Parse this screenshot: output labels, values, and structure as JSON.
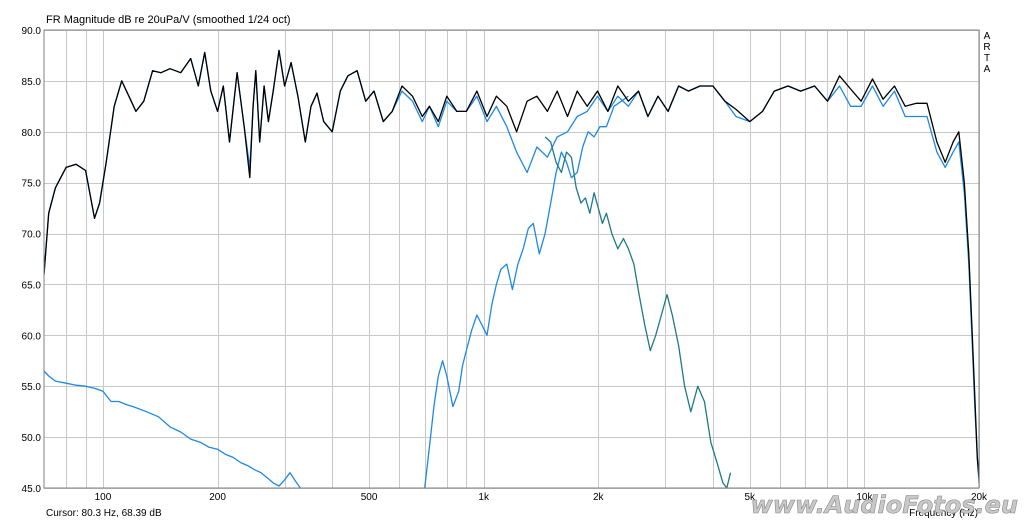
{
  "chart_data": {
    "type": "line",
    "title": "FR Magnitude dB re 20uPa/V (smoothed 1/24 oct)",
    "xlabel": "Frequency (Hz)",
    "ylabel": "",
    "x_scale": "log",
    "xlim": [
      70,
      20000
    ],
    "ylim": [
      45,
      90
    ],
    "grid": true,
    "legend": "none",
    "y_ticks": [
      {
        "value": 90,
        "label": "90.0"
      },
      {
        "value": 85,
        "label": "85.0"
      },
      {
        "value": 80,
        "label": "80.0"
      },
      {
        "value": 75,
        "label": "75.0"
      },
      {
        "value": 70,
        "label": "70.0"
      },
      {
        "value": 65,
        "label": "65.0"
      },
      {
        "value": 60,
        "label": "60.0"
      },
      {
        "value": 55,
        "label": "55.0"
      },
      {
        "value": 50,
        "label": "50.0"
      },
      {
        "value": 45,
        "label": "45.0"
      }
    ],
    "x_ticks": [
      {
        "value": 100,
        "label": "100"
      },
      {
        "value": 200,
        "label": "200"
      },
      {
        "value": 500,
        "label": "500"
      },
      {
        "value": 1000,
        "label": "1k"
      },
      {
        "value": 2000,
        "label": "2k"
      },
      {
        "value": 5000,
        "label": "5k"
      },
      {
        "value": 10000,
        "label": "10k"
      },
      {
        "value": 20000,
        "label": "20k"
      }
    ],
    "series": [
      {
        "color": "#000000",
        "x": [
          70,
          72,
          75,
          80,
          85,
          90,
          95,
          98,
          102,
          107,
          112,
          118,
          122,
          128,
          135,
          142,
          150,
          160,
          170,
          178,
          185,
          192,
          200,
          207,
          215,
          225,
          235,
          243,
          248,
          252,
          258,
          265,
          272,
          280,
          290,
          300,
          312,
          325,
          340,
          352,
          365,
          380,
          400,
          420,
          440,
          465,
          490,
          515,
          545,
          575,
          610,
          650,
          690,
          720,
          760,
          800,
          850,
          900,
          960,
          1020,
          1080,
          1150,
          1220,
          1300,
          1380,
          1470,
          1560,
          1660,
          1760,
          1870,
          1990,
          2120,
          2250,
          2400,
          2550,
          2700,
          2870,
          3050,
          3250,
          3450,
          3700,
          4000,
          4300,
          4600,
          5000,
          5400,
          5800,
          6300,
          6800,
          7400,
          8000,
          8600,
          9200,
          9800,
          10500,
          11200,
          12000,
          12800,
          13700,
          14600,
          15500,
          16300,
          17100,
          17700,
          18300,
          18800,
          19200,
          19500,
          19800,
          20000
        ],
        "values": [
          66,
          72,
          74.5,
          76.5,
          76.8,
          76.2,
          71.5,
          73,
          77,
          82.5,
          85,
          83.2,
          82,
          83,
          86,
          85.8,
          86.2,
          85.8,
          87.2,
          84.5,
          87.8,
          84,
          82,
          84.5,
          79,
          85.8,
          80.5,
          75.5,
          82.5,
          86,
          79,
          84.5,
          81,
          84,
          88,
          84.5,
          86.8,
          83.5,
          79,
          82.5,
          83.8,
          81,
          80,
          84,
          85.5,
          86,
          83,
          84,
          81,
          82,
          84.5,
          83.5,
          81.5,
          82.5,
          81,
          83.5,
          82,
          82,
          84,
          81.5,
          83.5,
          82.5,
          80,
          83,
          83.5,
          82,
          84,
          81.5,
          84,
          82.5,
          84,
          82,
          84.5,
          83,
          84,
          81.5,
          83.5,
          82,
          84.5,
          84,
          84.5,
          84.5,
          83,
          82.2,
          81,
          82,
          84,
          84.5,
          84,
          84.5,
          83,
          85.5,
          84.2,
          83,
          85.2,
          83.2,
          84.5,
          82.5,
          82.8,
          82.8,
          79,
          77,
          79,
          80,
          75,
          68,
          60,
          54,
          48,
          46
        ]
      },
      {
        "color": "#1e88e5",
        "x": [
          70,
          72,
          75,
          80,
          85,
          90,
          95,
          98,
          102,
          107,
          112,
          118,
          122,
          128,
          135,
          142,
          150,
          160,
          170,
          178,
          185,
          192,
          200,
          207,
          215,
          225,
          235,
          243,
          248,
          252,
          258,
          265,
          272,
          280,
          290,
          300,
          312,
          325,
          340,
          352,
          365,
          380,
          400,
          420,
          440,
          465,
          490,
          515,
          545,
          575,
          610,
          650,
          690,
          720,
          760,
          800,
          850,
          900,
          960,
          1020,
          1080,
          1150,
          1220,
          1300,
          1380,
          1470,
          1560,
          1660,
          1760,
          1870,
          1990,
          2120,
          2250,
          2400,
          2550,
          2700,
          2870,
          3050,
          3250,
          3450,
          3700,
          4000,
          4300,
          4600,
          5000,
          5400,
          5800,
          6300,
          6800,
          7400,
          8000,
          8600,
          9200,
          9800,
          10500,
          11200,
          12000,
          12800,
          13700,
          14600,
          15500,
          16300,
          17100,
          17700,
          18300,
          18800,
          19200,
          19500,
          19800,
          20000
        ],
        "values": [
          66,
          72,
          74.5,
          76.5,
          76.8,
          76.2,
          71.5,
          73,
          77,
          82.5,
          85,
          83.2,
          82,
          83,
          86,
          85.8,
          86.2,
          85.8,
          87.2,
          84.5,
          87.8,
          84,
          82,
          84.5,
          79,
          85.8,
          80.5,
          76.5,
          82.5,
          86,
          79,
          84.5,
          81,
          84,
          88,
          84.5,
          86.8,
          83.5,
          79,
          82.5,
          83.8,
          81,
          80,
          84,
          85.5,
          86,
          83,
          84,
          81,
          82,
          84,
          83,
          81,
          82.5,
          80.5,
          83,
          82,
          82,
          83.5,
          81,
          82.5,
          80.5,
          78,
          76,
          78.5,
          77.5,
          79.5,
          80,
          81.5,
          82,
          83.5,
          82,
          83.5,
          82.5,
          84,
          81.5,
          83.5,
          82,
          84.5,
          84,
          84.5,
          84.5,
          83,
          81.5,
          81,
          82,
          84,
          84.5,
          84,
          84.5,
          83,
          84.5,
          82.5,
          82.5,
          84.5,
          82.5,
          84,
          81.5,
          81.5,
          81.5,
          78,
          76.5,
          78,
          79,
          74,
          67,
          59,
          53,
          48,
          45.5
        ]
      },
      {
        "color": "#1e88e5",
        "x": [
          70,
          72,
          75,
          80,
          85,
          90,
          95,
          100,
          105,
          110,
          115,
          120,
          130,
          140,
          150,
          160,
          170,
          180,
          190,
          200,
          210,
          220,
          230,
          240,
          250,
          260,
          270,
          280,
          290,
          300,
          310,
          320,
          330
        ],
        "values": [
          56.5,
          56,
          55.5,
          55.3,
          55.1,
          55,
          54.8,
          54.5,
          53.5,
          53.5,
          53.2,
          53,
          52.5,
          52,
          51,
          50.5,
          49.8,
          49.5,
          49,
          48.8,
          48.3,
          48,
          47.5,
          47.2,
          46.8,
          46.5,
          46,
          45.5,
          45.2,
          45.8,
          46.5,
          45.7,
          45
        ]
      },
      {
        "color": "#1e88e5",
        "x": [
          700,
          720,
          740,
          760,
          780,
          800,
          830,
          860,
          880,
          900,
          930,
          960,
          990,
          1020,
          1050,
          1080,
          1110,
          1150,
          1190,
          1230,
          1270,
          1310,
          1350,
          1400,
          1450,
          1500,
          1550,
          1600,
          1650,
          1700,
          1760,
          1820,
          1880,
          1950,
          2020,
          2100,
          2200,
          2300,
          2400
        ],
        "values": [
          45,
          49,
          53,
          56,
          57.5,
          56,
          53,
          54.5,
          57,
          58.5,
          60.5,
          62,
          61,
          60,
          63,
          65,
          66.5,
          67,
          64.5,
          67,
          68.5,
          70.5,
          71,
          68,
          70,
          73,
          76,
          78,
          77,
          75.5,
          76,
          78.5,
          80,
          79.5,
          80.5,
          80.5,
          82.5,
          83,
          83.5
        ]
      },
      {
        "color": "#1e7a86",
        "x": [
          1450,
          1500,
          1550,
          1600,
          1650,
          1700,
          1750,
          1800,
          1850,
          1900,
          1950,
          2000,
          2050,
          2100,
          2170,
          2250,
          2330,
          2400,
          2480,
          2560,
          2650,
          2740,
          2830,
          2930,
          3030,
          3130,
          3250,
          3370,
          3500,
          3650,
          3800,
          3950,
          4100,
          4250,
          4350,
          4450
        ],
        "values": [
          79.5,
          79,
          77,
          76,
          78,
          77.5,
          74.5,
          73,
          73.5,
          72,
          74,
          72.5,
          71,
          72,
          70,
          68.5,
          69.5,
          68.5,
          67,
          64,
          61,
          58.5,
          60,
          62,
          64,
          62,
          59,
          55,
          52.5,
          55,
          53.5,
          49.5,
          47.5,
          45.5,
          45,
          46.5
        ]
      }
    ]
  },
  "status": {
    "cursor_text": "Cursor: 80.3 Hz, 68.39 dB",
    "xaxis_text": "Frequency (Hz)"
  },
  "brand": {
    "letters": [
      "A",
      "R",
      "T",
      "A"
    ],
    "watermark": "www.AudioFotos.eu"
  }
}
